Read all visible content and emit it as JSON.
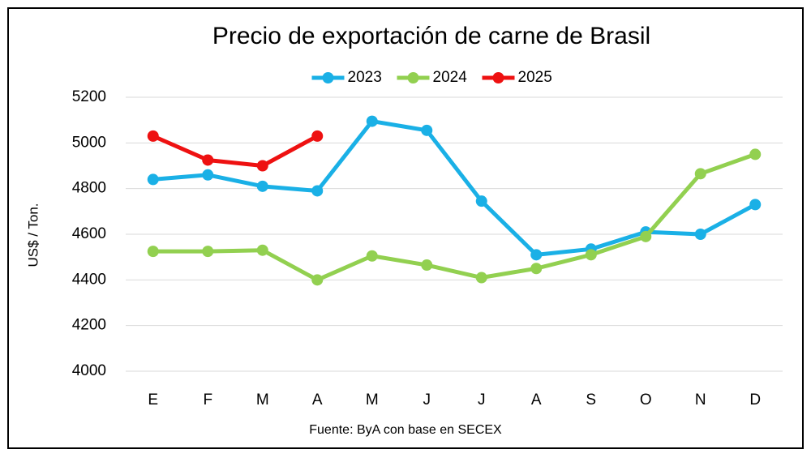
{
  "chart_data": {
    "type": "line",
    "title": "Precio de exportación de carne de Brasil",
    "y_label": "US$ / Ton.",
    "source": "Fuente: ByA con base en SECEX",
    "categories": [
      "E",
      "F",
      "M",
      "A",
      "M",
      "J",
      "J",
      "A",
      "S",
      "O",
      "N",
      "D"
    ],
    "series": [
      {
        "name": "2023",
        "color": "#1ab0e6",
        "values": [
          4840,
          4860,
          4810,
          4790,
          5095,
          5055,
          4745,
          4510,
          4535,
          4610,
          4600,
          4730
        ]
      },
      {
        "name": "2024",
        "color": "#92d050",
        "values": [
          4525,
          4525,
          4530,
          4400,
          4505,
          4465,
          4410,
          4450,
          4510,
          4590,
          4865,
          4950
        ]
      },
      {
        "name": "2025",
        "color": "#ee1111",
        "values": [
          5030,
          4925,
          4900,
          5030,
          null,
          null,
          null,
          null,
          null,
          null,
          null,
          null
        ]
      }
    ],
    "ylim": [
      4000,
      5200
    ],
    "yticks": [
      4000,
      4200,
      4400,
      4600,
      4800,
      5000,
      5200
    ],
    "grid": true,
    "legend": "top"
  }
}
